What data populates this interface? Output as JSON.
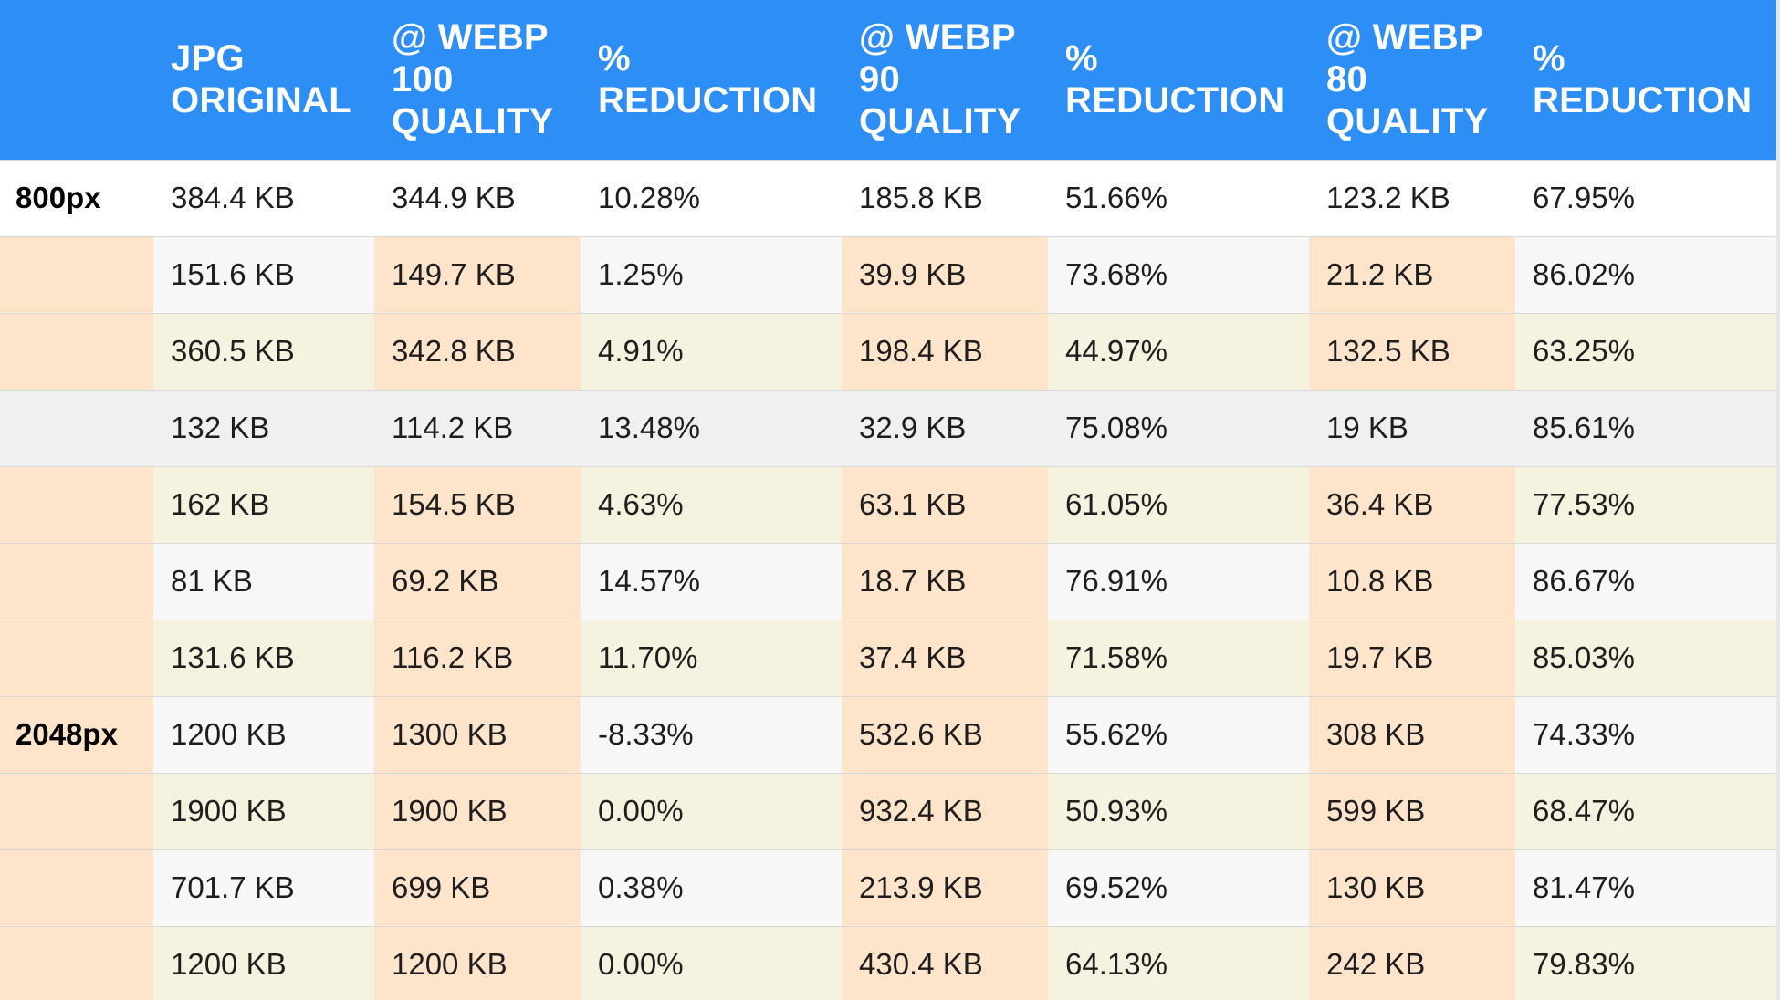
{
  "table": {
    "headers": [
      "",
      "JPG ORIGINAL",
      "@ WEBP 100 QUALITY",
      "% REDUCTION",
      "@ WEBP 90 QUALITY",
      "% REDUCTION",
      "@ WEBP 80 QUALITY",
      "% REDUCTION"
    ],
    "rows": [
      {
        "label": "800px",
        "cells": [
          "384.4 KB",
          "344.9 KB",
          "10.28%",
          "185.8 KB",
          "51.66%",
          "123.2 KB",
          "67.95%"
        ]
      },
      {
        "label": "",
        "cells": [
          "151.6 KB",
          "149.7 KB",
          "1.25%",
          "39.9 KB",
          "73.68%",
          "21.2 KB",
          "86.02%"
        ]
      },
      {
        "label": "",
        "cells": [
          "360.5 KB",
          "342.8 KB",
          "4.91%",
          "198.4 KB",
          "44.97%",
          "132.5 KB",
          "63.25%"
        ]
      },
      {
        "label": "",
        "cells": [
          "132 KB",
          "114.2 KB",
          "13.48%",
          "32.9 KB",
          "75.08%",
          "19 KB",
          "85.61%"
        ]
      },
      {
        "label": "",
        "cells": [
          "162 KB",
          "154.5 KB",
          "4.63%",
          "63.1 KB",
          "61.05%",
          "36.4 KB",
          "77.53%"
        ]
      },
      {
        "label": "",
        "cells": [
          "81 KB",
          "69.2 KB",
          "14.57%",
          "18.7 KB",
          "76.91%",
          "10.8 KB",
          "86.67%"
        ]
      },
      {
        "label": "",
        "cells": [
          "131.6 KB",
          "116.2 KB",
          "11.70%",
          "37.4 KB",
          "71.58%",
          "19.7 KB",
          "85.03%"
        ]
      },
      {
        "label": "2048px",
        "cells": [
          "1200 KB",
          "1300 KB",
          "-8.33%",
          "532.6 KB",
          "55.62%",
          "308 KB",
          "74.33%"
        ]
      },
      {
        "label": "",
        "cells": [
          "1900 KB",
          "1900 KB",
          "0.00%",
          "932.4 KB",
          "50.93%",
          "599 KB",
          "68.47%"
        ]
      },
      {
        "label": "",
        "cells": [
          "701.7 KB",
          "699 KB",
          "0.38%",
          "213.9 KB",
          "69.52%",
          "130 KB",
          "81.47%"
        ]
      },
      {
        "label": "",
        "cells": [
          "1200 KB",
          "1200 KB",
          "0.00%",
          "430.4 KB",
          "64.13%",
          "242 KB",
          "79.83%"
        ]
      }
    ],
    "colors": {
      "header": "#2d8ff5",
      "peach": "#ffe4cc",
      "cream": "#f5f3df",
      "grey": "#f7f7f7"
    }
  }
}
